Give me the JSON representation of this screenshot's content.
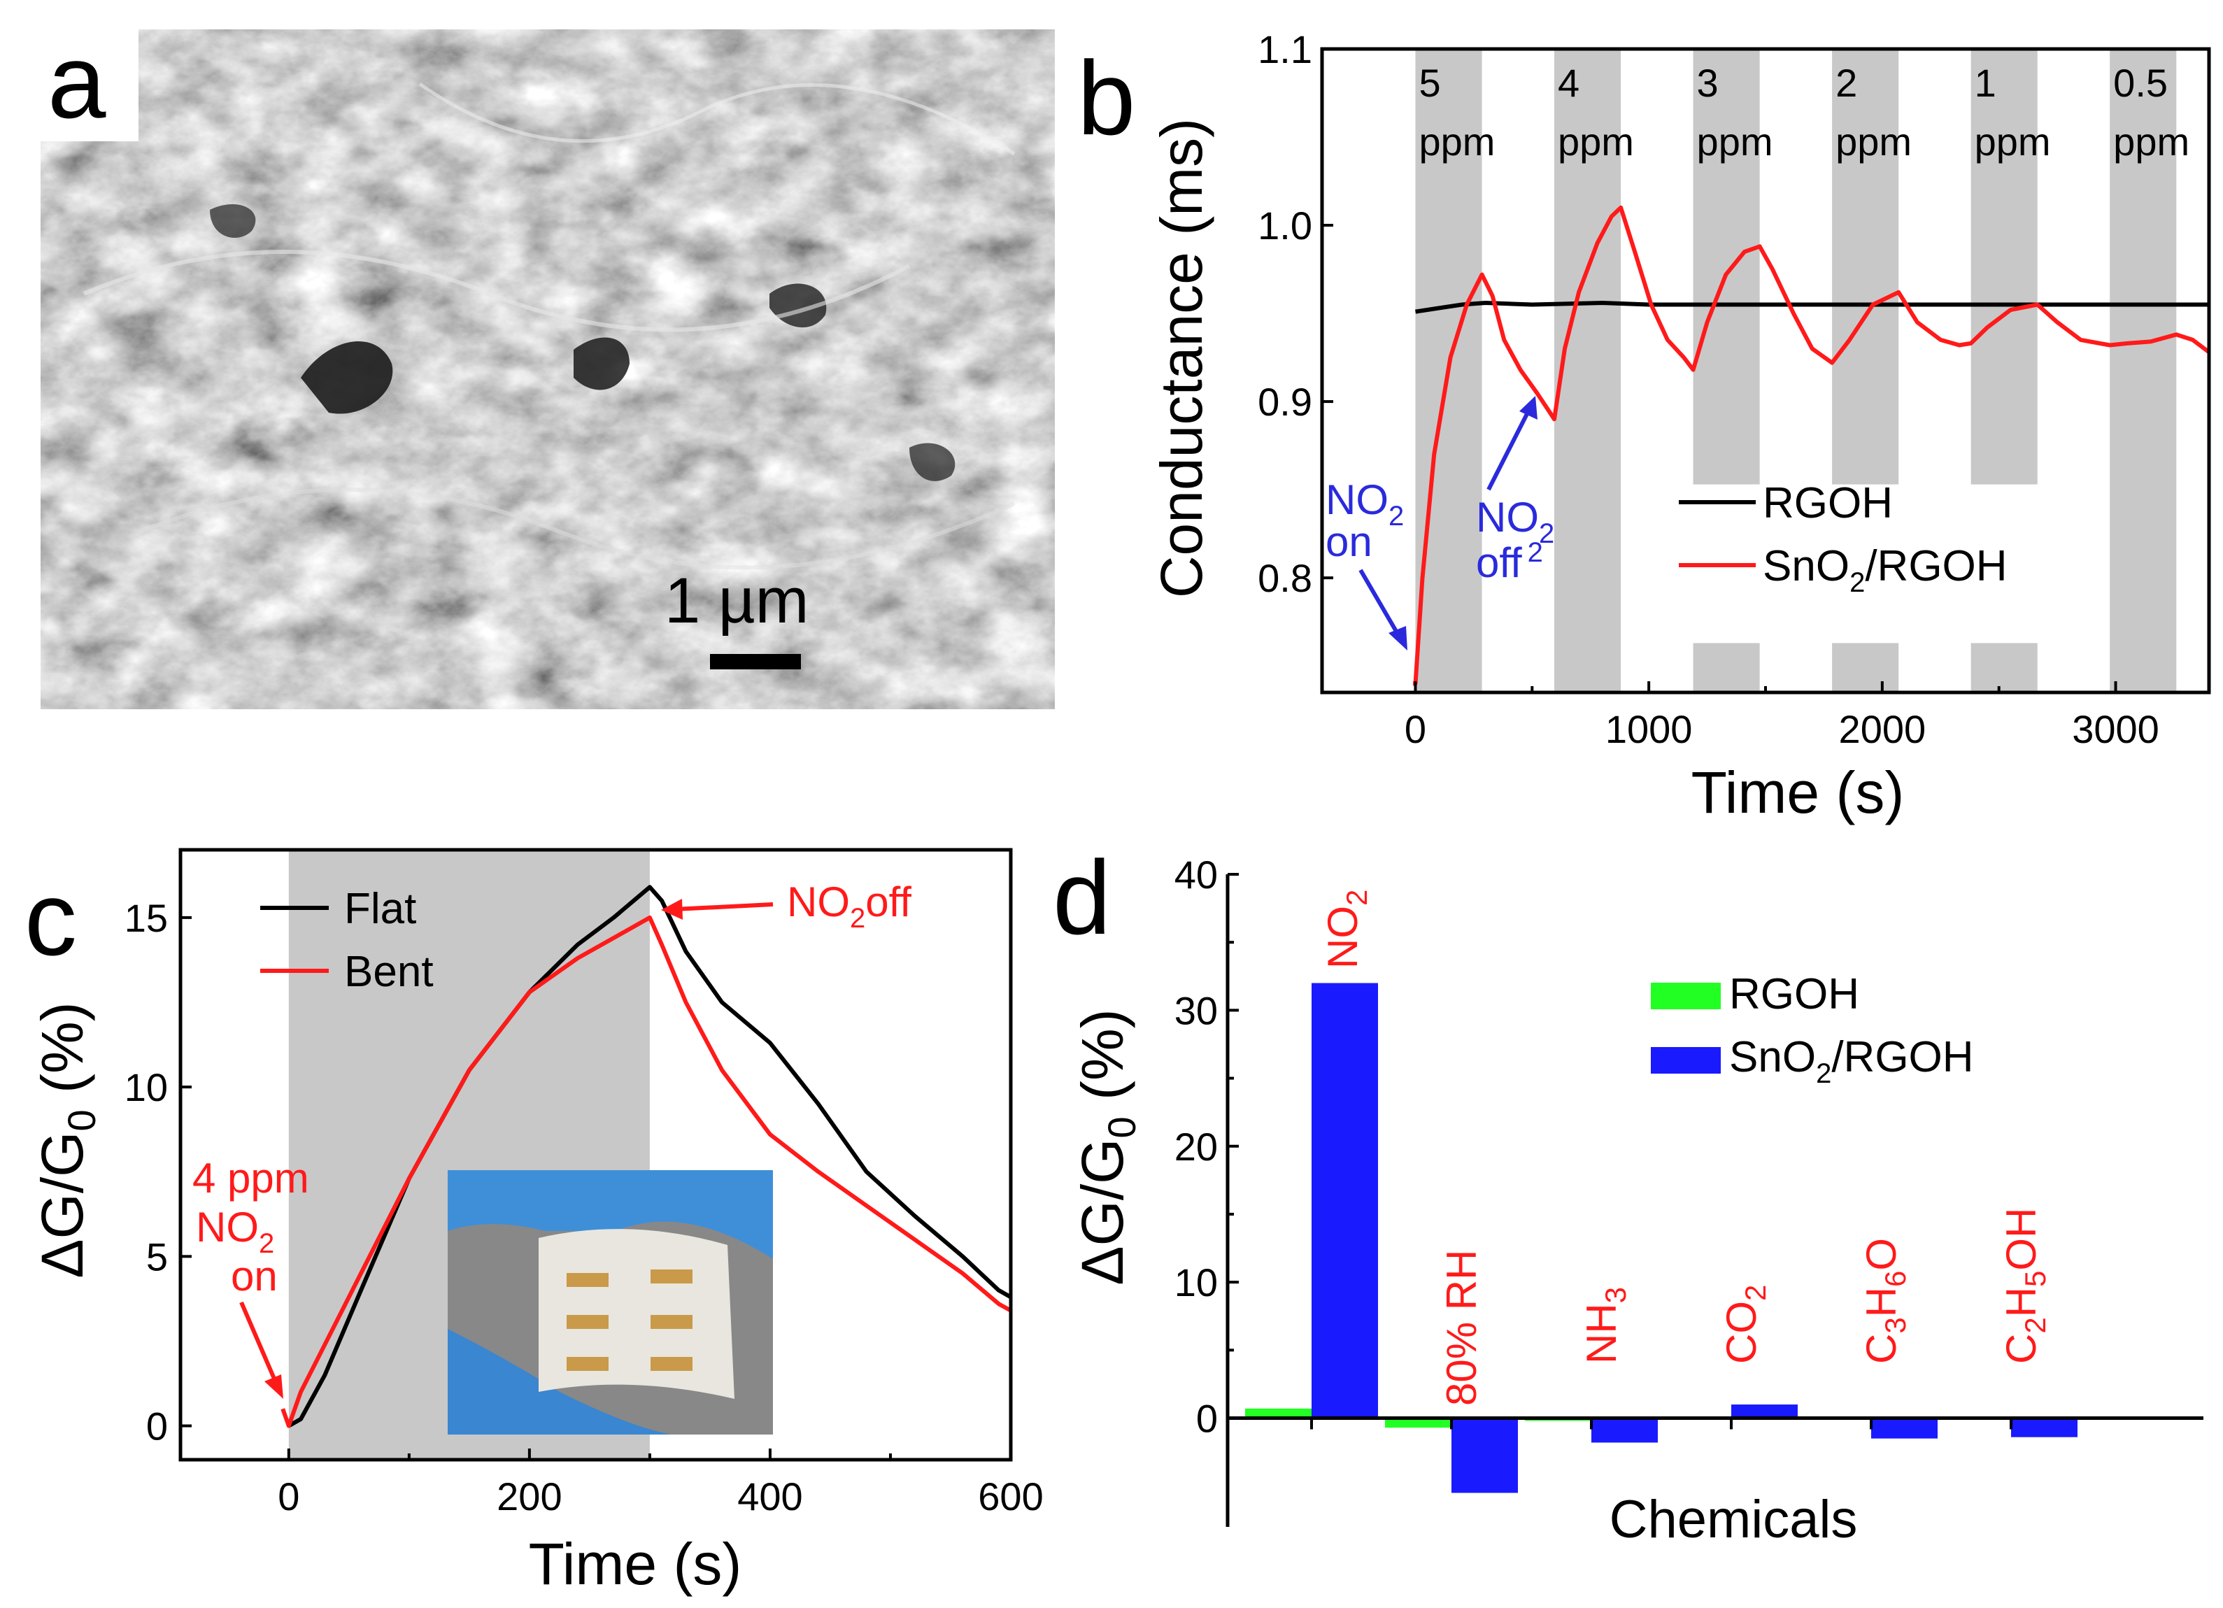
{
  "panel_labels": {
    "a": "a",
    "b": "b",
    "c": "c",
    "d": "d"
  },
  "sem": {
    "scale_bar_label": "1 µm"
  },
  "colors": {
    "black": "#000000",
    "red": "#ff1a1a",
    "blue": "#1a1aff",
    "green": "#22ff22",
    "annot_blue": "#2a2adc",
    "band": "#c8c8c8"
  },
  "chart_data": [
    {
      "id": "b",
      "type": "line",
      "xlabel": "Time (s)",
      "ylabel": "Conductance (ms)",
      "xlim": [
        -400,
        3400
      ],
      "ylim": [
        0.735,
        1.1
      ],
      "xticks": [
        0,
        1000,
        2000,
        3000
      ],
      "yticks": [
        0.8,
        0.9,
        1.0,
        1.1
      ],
      "ytick_labels": [
        "0.8",
        "0.9",
        "1.0",
        "1.1"
      ],
      "bands": [
        {
          "x0": 0,
          "x1": 285,
          "num": "5",
          "unit": "ppm",
          "gap": [
            null,
            null
          ]
        },
        {
          "x0": 595,
          "x1": 880,
          "num": "4",
          "unit": "ppm",
          "gap": [
            null,
            null
          ]
        },
        {
          "x0": 1190,
          "x1": 1475,
          "num": "3",
          "unit": "ppm",
          "gap": [
            0.763,
            0.853
          ]
        },
        {
          "x0": 1785,
          "x1": 2070,
          "num": "2",
          "unit": "ppm",
          "gap": [
            0.763,
            0.853
          ]
        },
        {
          "x0": 2380,
          "x1": 2665,
          "num": "1",
          "unit": "ppm",
          "gap": [
            0.763,
            0.853
          ]
        },
        {
          "x0": 2975,
          "x1": 3260,
          "num": "0.5",
          "unit": "ppm",
          "gap": [
            null,
            null
          ]
        }
      ],
      "series": [
        {
          "name": "RGOH",
          "color": "#000000",
          "x": [
            0,
            100,
            200,
            300,
            500,
            800,
            1000,
            1500,
            2000,
            2500,
            3000,
            3400
          ],
          "y": [
            0.951,
            0.953,
            0.955,
            0.956,
            0.955,
            0.956,
            0.955,
            0.955,
            0.955,
            0.955,
            0.955,
            0.955
          ]
        },
        {
          "name": "SnO2/RGOH",
          "color": "#ff1a1a",
          "x": [
            -10,
            0,
            30,
            80,
            150,
            220,
            285,
            330,
            380,
            450,
            520,
            570,
            595,
            640,
            700,
            780,
            840,
            880,
            940,
            1010,
            1080,
            1150,
            1190,
            1250,
            1330,
            1410,
            1475,
            1530,
            1620,
            1700,
            1785,
            1860,
            1960,
            2070,
            2150,
            2250,
            2330,
            2380,
            2450,
            2550,
            2665,
            2750,
            2850,
            2975,
            3050,
            3150,
            3260,
            3330,
            3400
          ],
          "y": [
            0.74,
            0.74,
            0.8,
            0.87,
            0.925,
            0.955,
            0.972,
            0.96,
            0.935,
            0.918,
            0.905,
            0.895,
            0.89,
            0.93,
            0.962,
            0.99,
            1.005,
            1.01,
            0.985,
            0.955,
            0.935,
            0.925,
            0.918,
            0.945,
            0.972,
            0.985,
            0.988,
            0.975,
            0.95,
            0.93,
            0.922,
            0.935,
            0.955,
            0.962,
            0.945,
            0.935,
            0.932,
            0.933,
            0.942,
            0.952,
            0.955,
            0.945,
            0.935,
            0.932,
            0.933,
            0.934,
            0.938,
            0.935,
            0.928
          ]
        }
      ],
      "legend": [
        {
          "label": "RGOH"
        },
        {
          "label_main": "SnO",
          "label_sub": "2",
          "label_tail": "/RGOH"
        }
      ],
      "annotations": {
        "on": {
          "line1_main": "NO",
          "line1_sub": "2",
          "line2": "on"
        },
        "off": {
          "line1_main": "NO",
          "line1_sub": "2",
          "line2_main": "off",
          "line2_sub": "2"
        }
      }
    },
    {
      "id": "c",
      "type": "line",
      "xlabel": "Time (s)",
      "ylabel": "ΔG/G₀ (%)",
      "ylabel_parts": {
        "main": "ΔG/G",
        "sub": "0",
        "tail": " (%)"
      },
      "xlim": [
        -90,
        600
      ],
      "ylim": [
        -1,
        17
      ],
      "xticks": [
        0,
        200,
        400,
        600
      ],
      "yticks": [
        0,
        5,
        10,
        15
      ],
      "band": {
        "x0": 0,
        "x1": 300
      },
      "series": [
        {
          "name": "Flat",
          "color": "#000000",
          "x": [
            0,
            10,
            30,
            60,
            100,
            150,
            200,
            240,
            270,
            290,
            300,
            310,
            330,
            360,
            400,
            440,
            480,
            520,
            560,
            590,
            600
          ],
          "y": [
            0,
            0.2,
            1.5,
            4,
            7.3,
            10.5,
            12.8,
            14.2,
            15.0,
            15.6,
            15.9,
            15.5,
            14.0,
            12.5,
            11.3,
            9.5,
            7.5,
            6.2,
            5.0,
            4.0,
            3.8
          ]
        },
        {
          "name": "Bent",
          "color": "#ff1a1a",
          "x": [
            -5,
            0,
            10,
            30,
            60,
            100,
            150,
            200,
            240,
            270,
            290,
            300,
            310,
            330,
            360,
            400,
            440,
            480,
            520,
            560,
            590,
            600
          ],
          "y": [
            0.5,
            0,
            1.0,
            2.4,
            4.5,
            7.3,
            10.5,
            12.8,
            13.8,
            14.4,
            14.8,
            15.0,
            14.2,
            12.5,
            10.5,
            8.6,
            7.5,
            6.5,
            5.5,
            4.5,
            3.6,
            3.4
          ]
        }
      ],
      "legend": [
        {
          "label": "Flat"
        },
        {
          "label": "Bent"
        }
      ],
      "annotations": {
        "on": {
          "line1": "4 ppm",
          "line2_main": "NO",
          "line2_sub": "2",
          "line3": "on"
        },
        "off": {
          "main": "NO",
          "sub": "2",
          "tail": "off"
        }
      }
    },
    {
      "id": "d",
      "type": "bar",
      "xlabel": "Chemicals",
      "ylabel": "ΔG/G₀ (%)",
      "ylabel_parts": {
        "main": "ΔG/G",
        "sub": "0",
        "tail": " (%)"
      },
      "ylim": [
        -8,
        40
      ],
      "yticks": [
        0,
        10,
        20,
        30,
        40
      ],
      "categories": [
        {
          "parts": [
            [
              "NO",
              false
            ],
            [
              "2",
              true
            ]
          ]
        },
        {
          "parts": [
            [
              "80% RH",
              false
            ]
          ]
        },
        {
          "parts": [
            [
              "NH",
              false
            ],
            [
              "3",
              true
            ]
          ]
        },
        {
          "parts": [
            [
              "CO",
              false
            ],
            [
              "2",
              true
            ]
          ]
        },
        {
          "parts": [
            [
              "C",
              false
            ],
            [
              "3",
              true
            ],
            [
              "H",
              false
            ],
            [
              "6",
              true
            ],
            [
              "O",
              false
            ]
          ]
        },
        {
          "parts": [
            [
              "C",
              false
            ],
            [
              "2",
              true
            ],
            [
              "H",
              false
            ],
            [
              "5",
              true
            ],
            [
              "OH",
              false
            ]
          ]
        }
      ],
      "series": [
        {
          "name": "RGOH",
          "color": "#22ff22",
          "values": [
            0.7,
            -0.7,
            -0.2,
            0.05,
            0.0,
            0.0
          ]
        },
        {
          "name": "SnO2/RGOH",
          "color": "#1a1aff",
          "values": [
            32.0,
            -5.5,
            -1.8,
            1.0,
            -1.5,
            -1.4
          ]
        }
      ],
      "legend": [
        {
          "label": "RGOH"
        },
        {
          "label_main": "SnO",
          "label_sub": "2",
          "label_tail": "/RGOH"
        }
      ]
    }
  ]
}
